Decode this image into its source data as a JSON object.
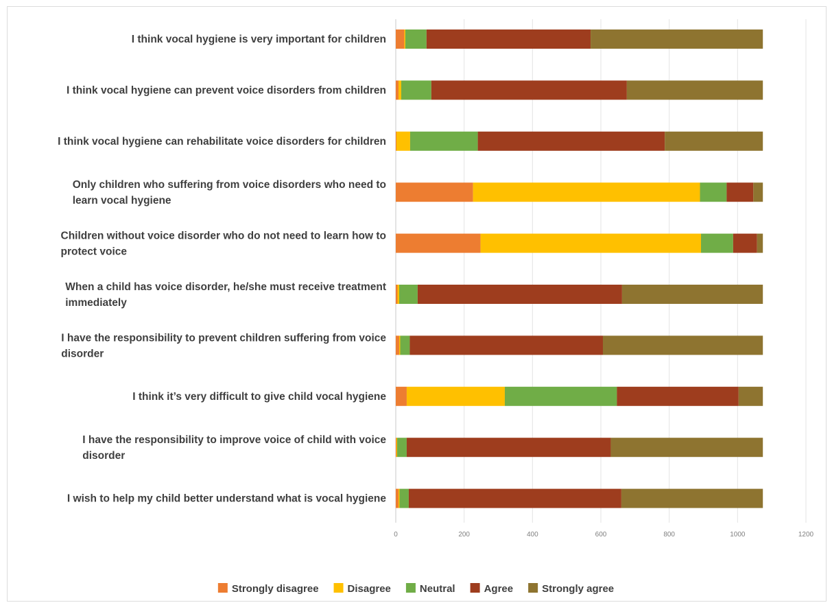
{
  "chart_data": {
    "type": "bar",
    "orientation": "horizontal",
    "stacked": true,
    "categories": [
      [
        "I think vocal hygiene is very important for children"
      ],
      [
        "I think vocal hygiene can prevent voice disorders from children"
      ],
      [
        "I think vocal hygiene can rehabilitate voice disorders for children"
      ],
      [
        "Only children who suffering from voice disorders who need to",
        "learn vocal hygiene"
      ],
      [
        "Children without voice disorder who do not need to learn how to",
        "protect voice"
      ],
      [
        "When a child has voice disorder, he/she must receive treatment",
        "immediately"
      ],
      [
        "I have the responsibility to prevent children suffering from voice",
        "disorder"
      ],
      [
        "I think it’s very difficult to give child vocal hygiene"
      ],
      [
        "I have the responsibility to improve voice of child with voice",
        "disorder"
      ],
      [
        "I wish to help my child better understand what is vocal hygiene"
      ]
    ],
    "series": [
      {
        "name": "Strongly disagree",
        "color": "#ED7D31",
        "values": [
          25,
          8,
          2,
          226,
          248,
          5,
          10,
          32,
          2,
          8
        ]
      },
      {
        "name": "Disagree",
        "color": "#FFC000",
        "values": [
          3,
          8,
          40,
          664,
          645,
          5,
          3,
          287,
          2,
          3
        ]
      },
      {
        "name": "Neutral",
        "color": "#70AD47",
        "values": [
          62,
          88,
          198,
          78,
          94,
          54,
          28,
          328,
          28,
          27
        ]
      },
      {
        "name": "Agree",
        "color": "#9E3D1E",
        "values": [
          480,
          572,
          547,
          78,
          70,
          598,
          565,
          356,
          597,
          622
        ]
      },
      {
        "name": "Strongly agree",
        "color": "#8E7430",
        "values": [
          504,
          398,
          287,
          28,
          17,
          412,
          468,
          71,
          445,
          414
        ]
      }
    ],
    "xlim": [
      0,
      1200
    ],
    "xticks": [
      "0",
      "200",
      "400",
      "600",
      "800",
      "1000",
      "1200"
    ],
    "grid": true,
    "legend_position": "bottom"
  }
}
